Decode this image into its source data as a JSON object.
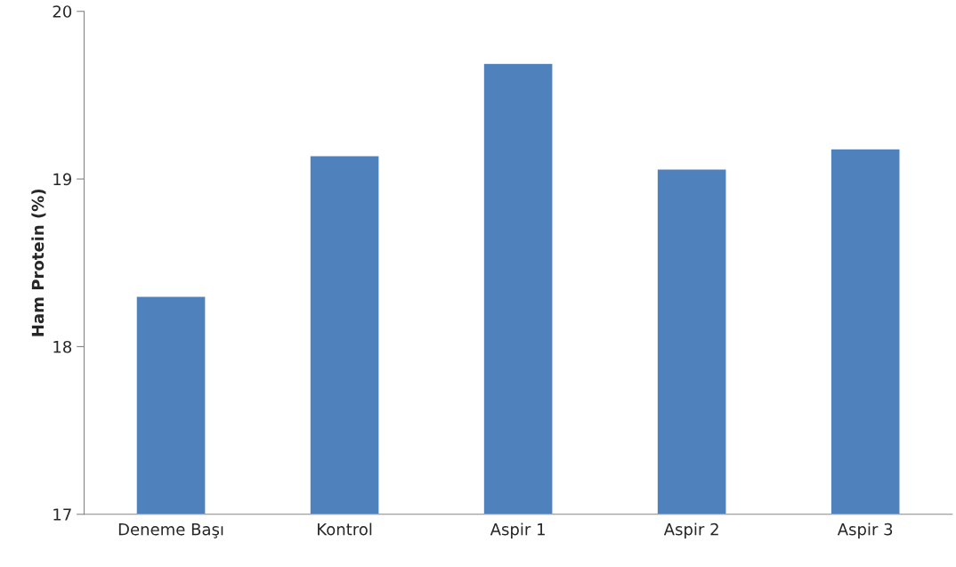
{
  "chart_data": {
    "type": "bar",
    "ylabel": "Ham Protein (%)",
    "categories": [
      "Deneme Başı",
      "Kontrol",
      "Aspir 1",
      "Aspir 2",
      "Aspir 3"
    ],
    "values": [
      18.3,
      19.14,
      19.69,
      19.06,
      19.18
    ],
    "color": "#4f81bd",
    "ylim": [
      17,
      20
    ],
    "yticks": [
      17,
      18,
      19,
      20
    ],
    "grid": false,
    "legend": false
  }
}
